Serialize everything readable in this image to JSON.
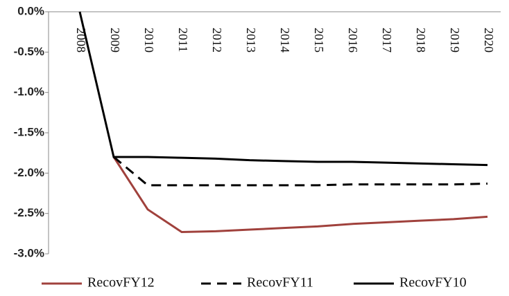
{
  "chart_data": {
    "type": "line",
    "categories": [
      "2008",
      "2009",
      "2010",
      "2011",
      "2012",
      "2013",
      "2014",
      "2015",
      "2016",
      "2017",
      "2018",
      "2019",
      "2020"
    ],
    "series": [
      {
        "name": "RecovFY12",
        "color": "#a0413c",
        "dash": "solid",
        "values": [
          null,
          -1.8,
          -2.45,
          -2.73,
          -2.72,
          -2.7,
          -2.68,
          -2.66,
          -2.63,
          -2.61,
          -2.59,
          -2.57,
          -2.54
        ]
      },
      {
        "name": "RecovFY11",
        "color": "#000000",
        "dash": "dashed",
        "values": [
          null,
          -1.8,
          -2.15,
          -2.15,
          -2.15,
          -2.15,
          -2.15,
          -2.15,
          -2.14,
          -2.14,
          -2.14,
          -2.14,
          -2.13
        ]
      },
      {
        "name": "RecovFY10",
        "color": "#000000",
        "dash": "solid",
        "values": [
          0,
          -1.8,
          -1.8,
          -1.81,
          -1.82,
          -1.84,
          -1.85,
          -1.86,
          -1.86,
          -1.87,
          -1.88,
          -1.89,
          -1.9
        ]
      }
    ],
    "ylim": [
      -3,
      0
    ],
    "yticks": [
      {
        "value": 0,
        "label": "0.0%"
      },
      {
        "value": -0.5,
        "label": "-0.5%"
      },
      {
        "value": -1,
        "label": "-1.0%"
      },
      {
        "value": -1.5,
        "label": "-1.5%"
      },
      {
        "value": -2,
        "label": "-2.0%"
      },
      {
        "value": -2.5,
        "label": "-2.5%"
      },
      {
        "value": -3,
        "label": "-3.0%"
      }
    ],
    "grid": false,
    "legend": "bottom"
  }
}
